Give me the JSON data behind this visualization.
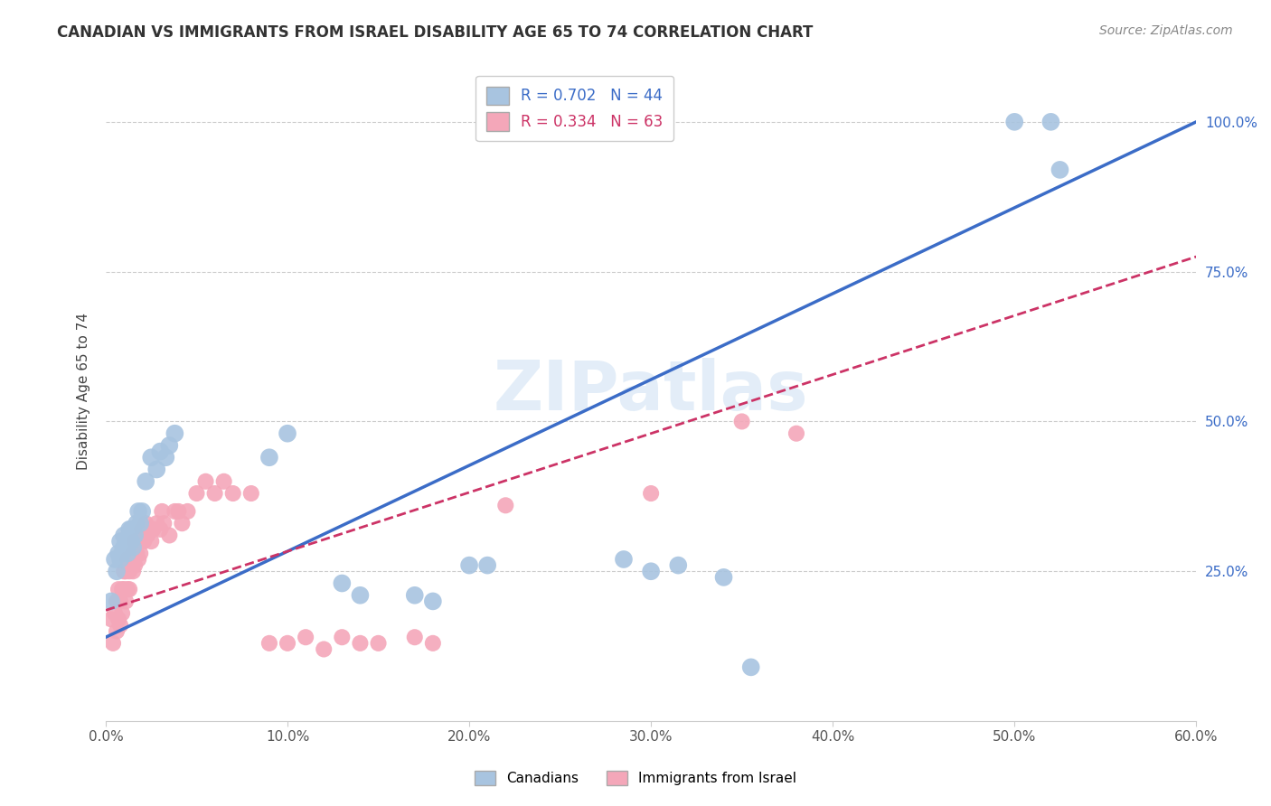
{
  "title": "CANADIAN VS IMMIGRANTS FROM ISRAEL DISABILITY AGE 65 TO 74 CORRELATION CHART",
  "source": "Source: ZipAtlas.com",
  "ylabel": "Disability Age 65 to 74",
  "xlim": [
    0.0,
    0.6
  ],
  "ylim": [
    0.0,
    1.1
  ],
  "xtick_labels": [
    "0.0%",
    "10.0%",
    "20.0%",
    "30.0%",
    "40.0%",
    "50.0%",
    "60.0%"
  ],
  "xtick_vals": [
    0.0,
    0.1,
    0.2,
    0.3,
    0.4,
    0.5,
    0.6
  ],
  "ytick_labels": [
    "25.0%",
    "50.0%",
    "75.0%",
    "100.0%"
  ],
  "ytick_vals": [
    0.25,
    0.5,
    0.75,
    1.0
  ],
  "R_canadian": 0.702,
  "N_canadian": 44,
  "R_israel": 0.334,
  "N_israel": 63,
  "legend_label_canadian": "Canadians",
  "legend_label_israel": "Immigrants from Israel",
  "canadian_color": "#a8c4e0",
  "canadian_line_color": "#3b6cc7",
  "israel_color": "#f4a7b9",
  "israel_line_color": "#cc3366",
  "watermark": "ZIPatlas",
  "blue_line": [
    [
      0.0,
      0.14
    ],
    [
      0.6,
      1.0
    ]
  ],
  "pink_line": [
    [
      0.0,
      0.185
    ],
    [
      0.6,
      0.775
    ]
  ],
  "canadian_x": [
    0.003,
    0.005,
    0.006,
    0.007,
    0.008,
    0.008,
    0.009,
    0.01,
    0.01,
    0.011,
    0.012,
    0.012,
    0.013,
    0.014,
    0.014,
    0.015,
    0.016,
    0.017,
    0.018,
    0.019,
    0.02,
    0.022,
    0.025,
    0.028,
    0.03,
    0.033,
    0.035,
    0.038,
    0.09,
    0.1,
    0.13,
    0.14,
    0.17,
    0.18,
    0.2,
    0.21,
    0.285,
    0.3,
    0.315,
    0.34,
    0.355,
    0.5,
    0.52,
    0.525
  ],
  "canadian_y": [
    0.2,
    0.27,
    0.25,
    0.28,
    0.27,
    0.3,
    0.28,
    0.29,
    0.31,
    0.3,
    0.28,
    0.3,
    0.32,
    0.3,
    0.32,
    0.29,
    0.31,
    0.33,
    0.35,
    0.33,
    0.35,
    0.4,
    0.44,
    0.42,
    0.45,
    0.44,
    0.46,
    0.48,
    0.44,
    0.48,
    0.23,
    0.21,
    0.21,
    0.2,
    0.26,
    0.26,
    0.27,
    0.25,
    0.26,
    0.24,
    0.09,
    1.0,
    1.0,
    0.92
  ],
  "israel_x": [
    0.003,
    0.004,
    0.005,
    0.006,
    0.006,
    0.007,
    0.007,
    0.008,
    0.008,
    0.009,
    0.009,
    0.01,
    0.01,
    0.011,
    0.011,
    0.012,
    0.012,
    0.013,
    0.013,
    0.014,
    0.015,
    0.015,
    0.016,
    0.016,
    0.017,
    0.018,
    0.018,
    0.019,
    0.02,
    0.02,
    0.021,
    0.022,
    0.023,
    0.025,
    0.026,
    0.028,
    0.03,
    0.031,
    0.032,
    0.035,
    0.038,
    0.04,
    0.042,
    0.045,
    0.05,
    0.055,
    0.06,
    0.065,
    0.07,
    0.08,
    0.09,
    0.1,
    0.11,
    0.12,
    0.13,
    0.14,
    0.15,
    0.17,
    0.18,
    0.22,
    0.3,
    0.35,
    0.38
  ],
  "israel_y": [
    0.17,
    0.13,
    0.18,
    0.15,
    0.2,
    0.17,
    0.22,
    0.2,
    0.16,
    0.22,
    0.18,
    0.25,
    0.22,
    0.2,
    0.25,
    0.22,
    0.27,
    0.25,
    0.22,
    0.27,
    0.25,
    0.28,
    0.26,
    0.3,
    0.28,
    0.27,
    0.3,
    0.28,
    0.3,
    0.32,
    0.3,
    0.33,
    0.31,
    0.3,
    0.32,
    0.33,
    0.32,
    0.35,
    0.33,
    0.31,
    0.35,
    0.35,
    0.33,
    0.35,
    0.38,
    0.4,
    0.38,
    0.4,
    0.38,
    0.38,
    0.13,
    0.13,
    0.14,
    0.12,
    0.14,
    0.13,
    0.13,
    0.14,
    0.13,
    0.36,
    0.38,
    0.5,
    0.48
  ]
}
